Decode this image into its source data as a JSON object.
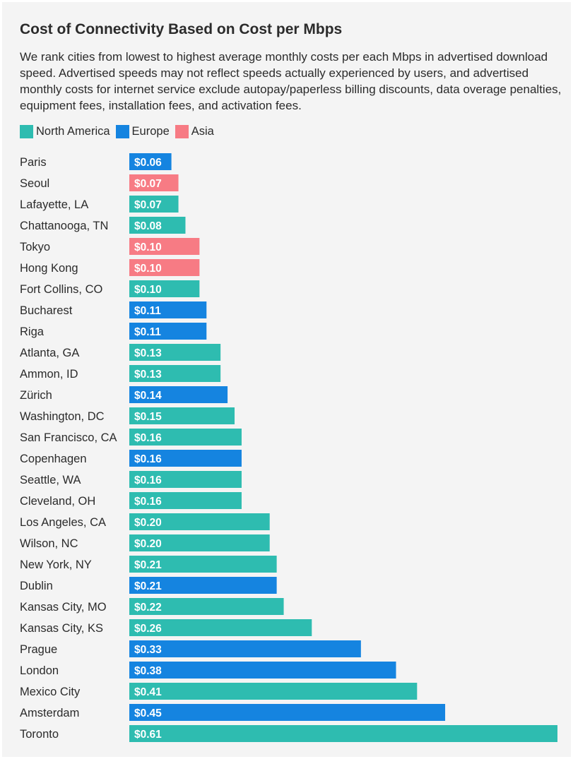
{
  "title": "Cost of Connectivity Based on Cost per Mbps",
  "subtitle": "We rank cities from lowest to highest average monthly costs per each Mbps in advertised download speed. Advertised speeds may not reflect speeds actually experienced by users, and advertised monthly costs for internet service exclude autopay/paperless billing discounts, data overage penalties, equipment fees, installation fees, and activation fees.",
  "legend": [
    {
      "name": "North America",
      "color": "#2ebcb0"
    },
    {
      "name": "Europe",
      "color": "#1584e0"
    },
    {
      "name": "Asia",
      "color": "#f77b84"
    }
  ],
  "chart_data": {
    "type": "bar",
    "orientation": "horizontal",
    "title": "Cost of Connectivity Based on Cost per Mbps",
    "xlim": [
      0,
      0.61
    ],
    "grid": false,
    "legend_position": "top-left",
    "categories": [
      "Paris",
      "Seoul",
      "Lafayette, LA",
      "Chattanooga, TN",
      "Tokyo",
      "Hong Kong",
      "Fort Collins, CO",
      "Bucharest",
      "Riga",
      "Atlanta, GA",
      "Ammon, ID",
      "Zürich",
      "Washington, DC",
      "San Francisco, CA",
      "Copenhagen",
      "Seattle, WA",
      "Cleveland, OH",
      "Los Angeles, CA",
      "Wilson, NC",
      "New York, NY",
      "Dublin",
      "Kansas City, MO",
      "Kansas City, KS",
      "Prague",
      "London",
      "Mexico City",
      "Amsterdam",
      "Toronto"
    ],
    "values": [
      0.06,
      0.07,
      0.07,
      0.08,
      0.1,
      0.1,
      0.1,
      0.11,
      0.11,
      0.13,
      0.13,
      0.14,
      0.15,
      0.16,
      0.16,
      0.16,
      0.16,
      0.2,
      0.2,
      0.21,
      0.21,
      0.22,
      0.26,
      0.33,
      0.38,
      0.41,
      0.45,
      0.61
    ],
    "value_labels": [
      "$0.06",
      "$0.07",
      "$0.07",
      "$0.08",
      "$0.10",
      "$0.10",
      "$0.10",
      "$0.11",
      "$0.11",
      "$0.13",
      "$0.13",
      "$0.14",
      "$0.15",
      "$0.16",
      "$0.16",
      "$0.16",
      "$0.16",
      "$0.20",
      "$0.20",
      "$0.21",
      "$0.21",
      "$0.22",
      "$0.26",
      "$0.33",
      "$0.38",
      "$0.41",
      "$0.45",
      "$0.61"
    ],
    "region": [
      "Europe",
      "Asia",
      "North America",
      "North America",
      "Asia",
      "Asia",
      "North America",
      "Europe",
      "Europe",
      "North America",
      "North America",
      "Europe",
      "North America",
      "North America",
      "Europe",
      "North America",
      "North America",
      "North America",
      "North America",
      "North America",
      "Europe",
      "North America",
      "North America",
      "Europe",
      "Europe",
      "North America",
      "Europe",
      "North America"
    ]
  }
}
